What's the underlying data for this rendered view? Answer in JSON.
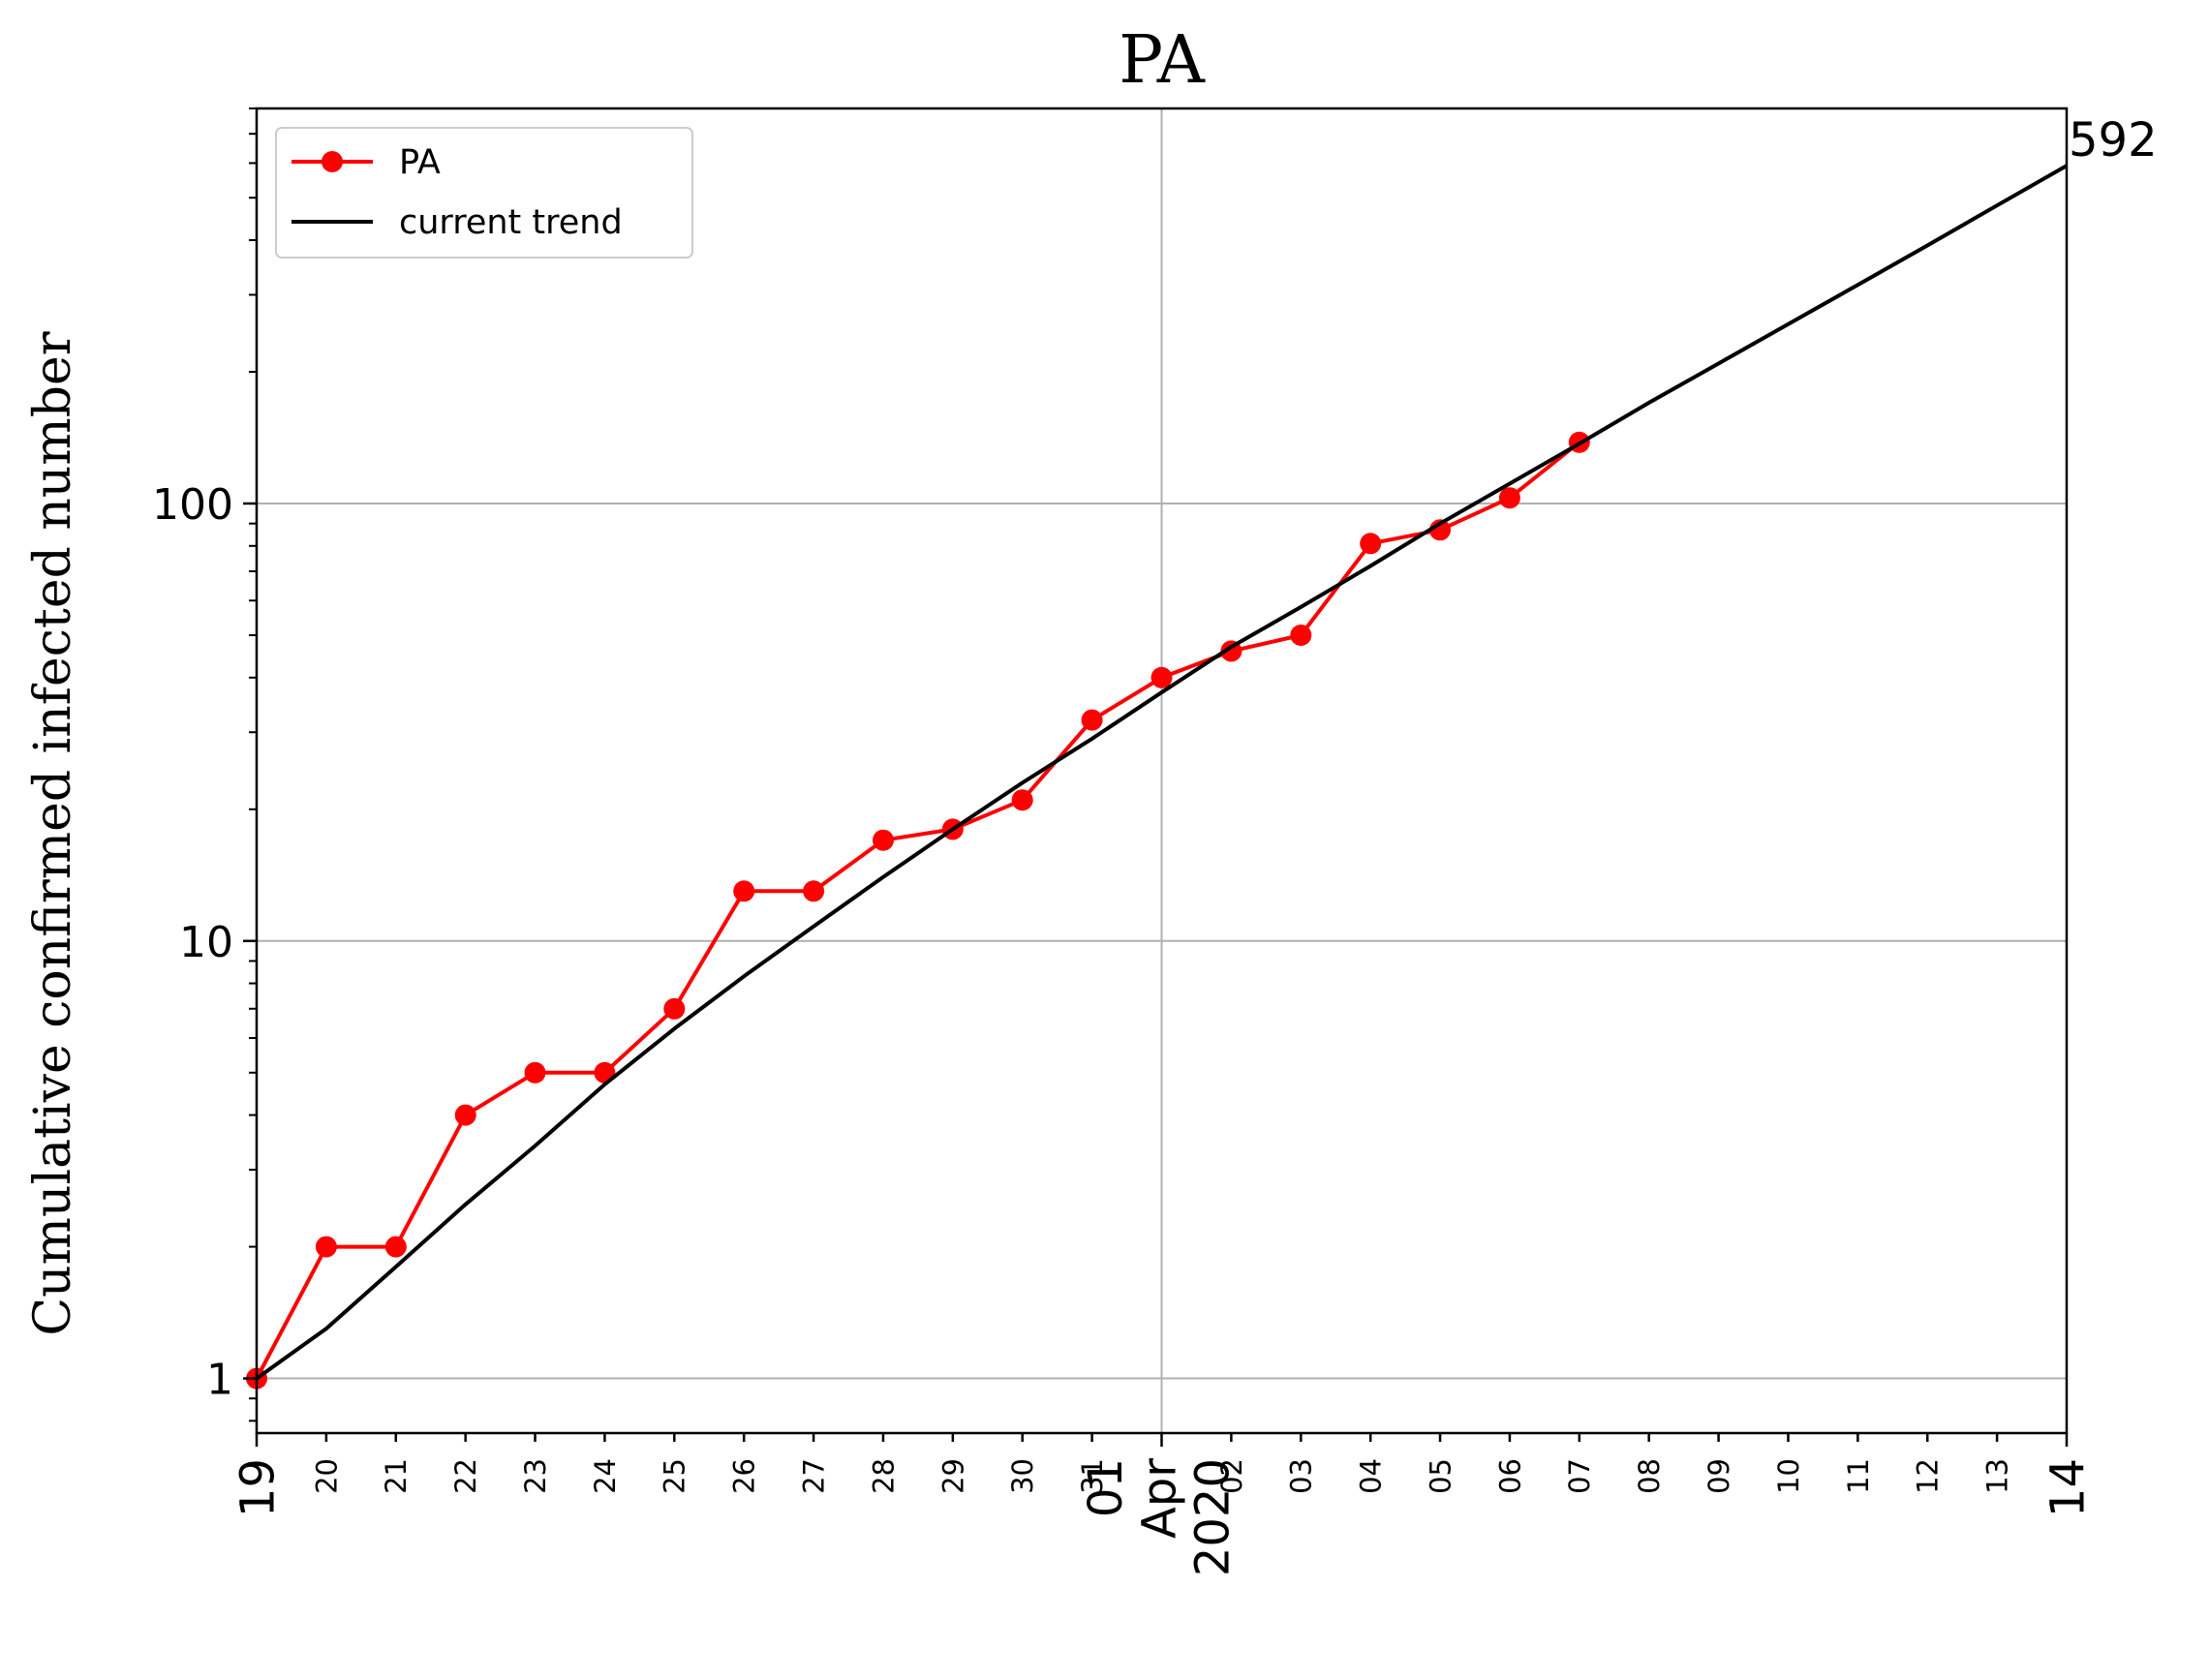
{
  "chart_data": {
    "type": "line",
    "title": "PA",
    "xlabel": "",
    "ylabel": "Cumulative confirmed infected number",
    "yscale": "log",
    "ylim": [
      0.75,
      800
    ],
    "xlim": [
      "2020-03-19",
      "2020-04-14"
    ],
    "grid": true,
    "legend_position": "top-left",
    "yticks": [
      {
        "value": 1,
        "label": "1"
      },
      {
        "value": 10,
        "label": "10"
      },
      {
        "value": 100,
        "label": "100"
      }
    ],
    "xticks": [
      {
        "date": "2020-03-19",
        "label": "19"
      },
      {
        "date": "2020-03-20",
        "label": "20"
      },
      {
        "date": "2020-03-21",
        "label": "21"
      },
      {
        "date": "2020-03-22",
        "label": "22"
      },
      {
        "date": "2020-03-23",
        "label": "23"
      },
      {
        "date": "2020-03-24",
        "label": "24"
      },
      {
        "date": "2020-03-25",
        "label": "25"
      },
      {
        "date": "2020-03-26",
        "label": "26"
      },
      {
        "date": "2020-03-27",
        "label": "27"
      },
      {
        "date": "2020-03-28",
        "label": "28"
      },
      {
        "date": "2020-03-29",
        "label": "29"
      },
      {
        "date": "2020-03-30",
        "label": "30"
      },
      {
        "date": "2020-03-31",
        "label": "31"
      },
      {
        "date": "2020-04-01",
        "label": "01\nApr\n2020"
      },
      {
        "date": "2020-04-02",
        "label": "02"
      },
      {
        "date": "2020-04-03",
        "label": "03"
      },
      {
        "date": "2020-04-04",
        "label": "04"
      },
      {
        "date": "2020-04-05",
        "label": "05"
      },
      {
        "date": "2020-04-06",
        "label": "06"
      },
      {
        "date": "2020-04-07",
        "label": "07"
      },
      {
        "date": "2020-04-08",
        "label": "08"
      },
      {
        "date": "2020-04-09",
        "label": "09"
      },
      {
        "date": "2020-04-10",
        "label": "10"
      },
      {
        "date": "2020-04-11",
        "label": "11"
      },
      {
        "date": "2020-04-12",
        "label": "12"
      },
      {
        "date": "2020-04-13",
        "label": "13"
      },
      {
        "date": "2020-04-14",
        "label": "14"
      }
    ],
    "series": [
      {
        "name": "PA",
        "color": "#ff0000",
        "marker": "circle",
        "x": [
          "2020-03-19",
          "2020-03-20",
          "2020-03-21",
          "2020-03-22",
          "2020-03-23",
          "2020-03-24",
          "2020-03-25",
          "2020-03-26",
          "2020-03-27",
          "2020-03-28",
          "2020-03-29",
          "2020-03-30",
          "2020-03-31",
          "2020-04-01",
          "2020-04-02",
          "2020-04-03",
          "2020-04-04",
          "2020-04-05",
          "2020-04-06",
          "2020-04-07"
        ],
        "values": [
          1,
          2,
          2,
          4,
          5,
          5,
          7,
          13,
          13,
          17,
          18,
          21,
          32,
          40,
          46,
          50,
          81,
          87,
          103,
          138
        ]
      },
      {
        "name": "current trend",
        "color": "#000000",
        "marker": "none",
        "x": [
          "2020-03-19",
          "2020-03-20",
          "2020-03-21",
          "2020-03-22",
          "2020-03-23",
          "2020-03-24",
          "2020-03-25",
          "2020-03-26",
          "2020-03-27",
          "2020-03-28",
          "2020-03-29",
          "2020-03-30",
          "2020-03-31",
          "2020-04-01",
          "2020-04-02",
          "2020-04-03",
          "2020-04-04",
          "2020-04-05",
          "2020-04-06",
          "2020-04-07",
          "2020-04-08",
          "2020-04-09",
          "2020-04-10",
          "2020-04-11",
          "2020-04-12",
          "2020-04-13",
          "2020-04-14"
        ],
        "values": [
          1,
          1.3,
          1.8,
          2.5,
          3.4,
          4.7,
          6.3,
          8.3,
          10.8,
          14,
          18,
          23,
          29,
          37,
          47,
          58,
          72,
          90,
          111,
          137,
          170,
          209,
          257,
          316,
          389,
          480,
          592
        ]
      }
    ],
    "annotations": [
      {
        "text": "592",
        "date": "2020-04-14",
        "value": 592
      }
    ]
  }
}
